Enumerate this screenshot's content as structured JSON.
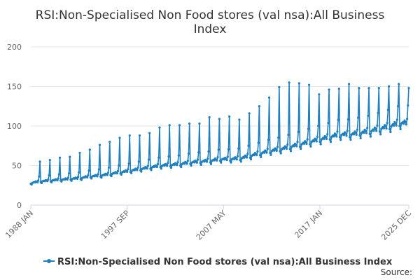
{
  "chart_data": {
    "type": "line",
    "title_line1": "RSI:Non-Specialised Non Food stores (val nsa):All Business",
    "title_line2": "Index",
    "xlabel": "",
    "ylabel": "",
    "ylim": [
      0,
      200
    ],
    "y_ticks": [
      "0",
      "50",
      "100",
      "150",
      "200"
    ],
    "x_ticks": [
      {
        "label": "1988 JAN",
        "t": 0
      },
      {
        "label": "1997 SEP",
        "t": 116
      },
      {
        "label": "2007 MAY",
        "t": 232
      },
      {
        "label": "2017 JAN",
        "t": 348
      },
      {
        "label": "2025 DEC",
        "t": 455
      }
    ],
    "x_range": [
      "1988 JAN",
      "2025 DEC"
    ],
    "grid": "horizontal",
    "legend": "bottom",
    "color": "#1f7fbf",
    "series": [
      {
        "name": "RSI:Non-Specialised Non Food stores (val nsa):All Business Index",
        "frequency": "monthly",
        "start": "1988 JAN",
        "baseline_by_year": [
          27,
          29,
          30,
          31,
          32,
          33,
          35,
          36,
          38,
          40,
          42,
          44,
          46,
          48,
          49,
          50,
          52,
          53,
          54,
          56,
          56,
          57,
          60,
          63,
          66,
          68,
          71,
          74,
          77,
          80,
          83,
          86,
          86,
          88,
          90,
          93,
          96,
          100
        ],
        "december_peak_by_year": [
          55,
          57,
          60,
          61,
          66,
          70,
          76,
          80,
          85,
          88,
          88,
          91,
          98,
          101,
          101,
          103,
          103,
          111,
          109,
          112,
          108,
          116,
          125,
          136,
          149,
          155,
          154,
          152,
          140,
          146,
          147,
          153,
          148,
          148,
          148,
          150,
          153,
          148
        ]
      }
    ]
  },
  "legend": {
    "label": "RSI:Non-Specialised Non Food stores (val nsa):All Business Index"
  },
  "source": {
    "label": "Source:"
  }
}
